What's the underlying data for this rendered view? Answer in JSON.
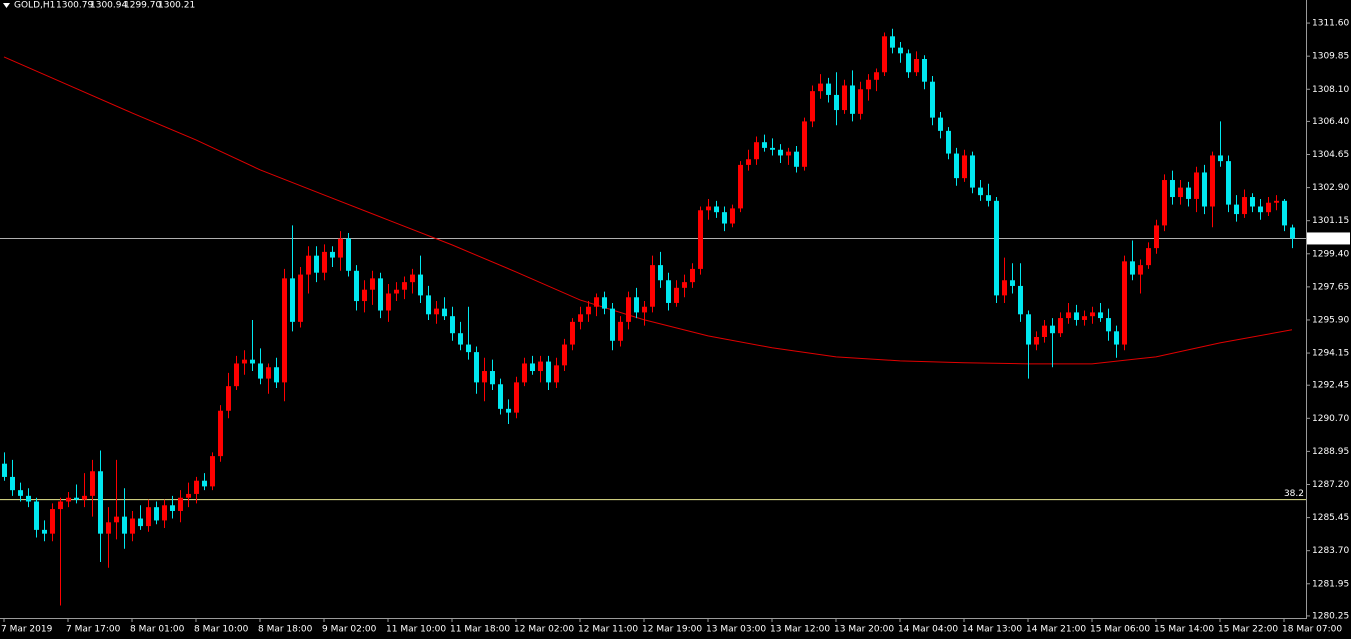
{
  "chart_data": {
    "type": "candlestick",
    "title": "GOLD,H1",
    "header_values": [
      "1300.79",
      "1300.94",
      "1299.70",
      "1300.21"
    ],
    "categories": [
      "7 Mar 2019",
      null,
      null,
      null,
      null,
      null,
      null,
      null,
      "7 Mar 17:00",
      null,
      null,
      null,
      null,
      null,
      null,
      null,
      "8 Mar 01:00",
      null,
      null,
      null,
      null,
      null,
      null,
      null,
      "8 Mar 10:00",
      null,
      null,
      null,
      null,
      null,
      null,
      null,
      "8 Mar 18:00",
      null,
      null,
      null,
      null,
      null,
      null,
      null,
      "9 Mar 02:00",
      null,
      null,
      null,
      null,
      null,
      null,
      null,
      "11 Mar 10:00",
      null,
      null,
      null,
      null,
      null,
      null,
      null,
      "11 Mar 18:00",
      null,
      null,
      null,
      null,
      null,
      null,
      null,
      "12 Mar 02:00",
      null,
      null,
      null,
      null,
      null,
      null,
      null,
      "12 Mar 11:00",
      null,
      null,
      null,
      null,
      null,
      null,
      null,
      "12 Mar 19:00",
      null,
      null,
      null,
      null,
      null,
      null,
      null,
      "13 Mar 03:00",
      null,
      null,
      null,
      null,
      null,
      null,
      null,
      "13 Mar 12:00",
      null,
      null,
      null,
      null,
      null,
      null,
      null,
      "13 Mar 20:00",
      null,
      null,
      null,
      null,
      null,
      null,
      null,
      "14 Mar 04:00",
      null,
      null,
      null,
      null,
      null,
      null,
      null,
      "14 Mar 13:00",
      null,
      null,
      null,
      null,
      null,
      null,
      null,
      "14 Mar 21:00",
      null,
      null,
      null,
      null,
      null,
      null,
      null,
      "15 Mar 06:00",
      null,
      null,
      null,
      null,
      null,
      null,
      null,
      "15 Mar 14:00",
      null,
      null,
      null,
      null,
      null,
      null,
      null,
      "15 Mar 22:00",
      null,
      null,
      null,
      null,
      null,
      null,
      null,
      "18 Mar 07:00",
      null
    ],
    "open": [
      1288.3,
      1287.6,
      1286.9,
      1286.6,
      1286.3,
      1284.8,
      1284.6,
      1285.9,
      1286.3,
      1286.5,
      1286.4,
      1286.6,
      1287.9,
      1284.6,
      1285.2,
      1285.5,
      1284.6,
      1285.4,
      1285.0,
      1286.0,
      1285.3,
      1286.1,
      1285.8,
      1286.5,
      1286.7,
      1287.4,
      1287.1,
      1288.7,
      1291.1,
      1292.4,
      1293.6,
      1293.8,
      1293.6,
      1292.8,
      1293.4,
      1292.6,
      1298.1,
      1295.8,
      1298.3,
      1299.3,
      1298.4,
      1299.5,
      1299.2,
      1300.2,
      1298.5,
      1296.9,
      1297.5,
      1298.1,
      1296.4,
      1297.3,
      1297.5,
      1297.9,
      1298.3,
      1297.2,
      1296.2,
      1296.5,
      1296.1,
      1295.2,
      1294.6,
      1294.2,
      1292.6,
      1293.2,
      1292.5,
      1291.2,
      1291.0,
      1292.6,
      1293.6,
      1293.2,
      1293.7,
      1292.6,
      1293.5,
      1294.6,
      1295.8,
      1296.2,
      1296.6,
      1297.1,
      1296.5,
      1294.8,
      1295.8,
      1297.1,
      1296.3,
      1296.6,
      1298.8,
      1298.0,
      1296.8,
      1297.6,
      1297.9,
      1298.6,
      1301.7,
      1301.9,
      1301.6,
      1301.0,
      1301.8,
      1304.1,
      1304.4,
      1305.3,
      1305.0,
      1304.9,
      1304.6,
      1304.8,
      1304.0,
      1306.4,
      1308.0,
      1308.4,
      1307.8,
      1307.0,
      1308.3,
      1306.8,
      1308.1,
      1308.6,
      1309.0,
      1310.9,
      1310.3,
      1310.0,
      1309.0,
      1309.7,
      1308.5,
      1306.6,
      1305.9,
      1304.7,
      1303.4,
      1304.6,
      1302.9,
      1302.5,
      1302.2,
      1297.2,
      1298.0,
      1297.7,
      1296.2,
      1294.6,
      1295.0,
      1295.6,
      1295.2,
      1296.0,
      1296.3,
      1295.9,
      1296.1,
      1296.3,
      1296.0,
      1295.3,
      1294.6,
      1299.0,
      1298.3,
      1298.8,
      1299.7,
      1300.9,
      1303.3,
      1302.4,
      1302.9,
      1302.3,
      1303.7,
      1301.9,
      1304.6,
      1304.3,
      1302.0,
      1301.5,
      1302.4,
      1301.9,
      1301.6,
      1302.1,
      1302.2,
      1300.79
    ],
    "high": [
      1288.9,
      1288.5,
      1287.3,
      1287.0,
      1286.5,
      1285.3,
      1286.2,
      1286.5,
      1286.8,
      1287.2,
      1287.8,
      1288.5,
      1289.0,
      1286.0,
      1288.5,
      1287.0,
      1285.8,
      1286.1,
      1286.4,
      1286.3,
      1286.4,
      1286.6,
      1286.9,
      1287.3,
      1287.6,
      1287.8,
      1288.9,
      1291.4,
      1293.1,
      1294.0,
      1294.3,
      1295.9,
      1294.4,
      1293.6,
      1293.9,
      1298.6,
      1300.9,
      1298.7,
      1299.8,
      1299.8,
      1299.9,
      1299.8,
      1300.6,
      1300.5,
      1298.8,
      1298.0,
      1298.5,
      1298.4,
      1297.8,
      1297.9,
      1298.2,
      1298.6,
      1299.3,
      1297.7,
      1296.9,
      1297.1,
      1296.6,
      1295.8,
      1296.6,
      1294.5,
      1293.9,
      1293.8,
      1292.8,
      1291.7,
      1292.9,
      1293.9,
      1294.0,
      1294.0,
      1294.0,
      1293.9,
      1294.9,
      1296.0,
      1296.6,
      1296.9,
      1297.3,
      1297.4,
      1296.8,
      1296.1,
      1297.4,
      1297.6,
      1296.9,
      1299.3,
      1299.5,
      1298.4,
      1298.0,
      1298.3,
      1298.9,
      1301.9,
      1302.3,
      1302.2,
      1301.9,
      1302.0,
      1304.3,
      1304.9,
      1305.6,
      1305.7,
      1305.5,
      1305.2,
      1305.0,
      1305.1,
      1306.6,
      1308.3,
      1308.9,
      1308.7,
      1309.0,
      1308.6,
      1309.1,
      1308.5,
      1308.9,
      1309.2,
      1311.1,
      1311.3,
      1310.6,
      1310.2,
      1310.1,
      1309.9,
      1308.8,
      1306.9,
      1306.1,
      1305.0,
      1304.9,
      1304.8,
      1303.3,
      1303.1,
      1302.4,
      1299.2,
      1298.9,
      1298.9,
      1296.4,
      1295.3,
      1295.9,
      1296.0,
      1296.3,
      1296.8,
      1296.7,
      1296.4,
      1296.6,
      1296.8,
      1296.5,
      1295.6,
      1299.3,
      1300.1,
      1299.1,
      1300.0,
      1301.2,
      1303.6,
      1303.8,
      1303.3,
      1303.2,
      1304.0,
      1304.1,
      1304.8,
      1306.4,
      1304.6,
      1302.5,
      1302.8,
      1302.6,
      1302.3,
      1302.4,
      1302.5,
      1302.3,
      1300.94
    ],
    "low": [
      1287.4,
      1286.6,
      1286.3,
      1286.0,
      1284.4,
      1284.2,
      1284.2,
      1280.8,
      1286.0,
      1286.2,
      1286.0,
      1285.5,
      1283.1,
      1282.8,
      1284.3,
      1283.8,
      1284.2,
      1284.8,
      1284.7,
      1285.1,
      1284.9,
      1285.4,
      1285.2,
      1286.0,
      1286.2,
      1286.9,
      1286.9,
      1288.4,
      1290.7,
      1292.2,
      1293.0,
      1293.2,
      1292.5,
      1292.0,
      1292.3,
      1291.6,
      1295.3,
      1295.5,
      1297.3,
      1297.9,
      1298.0,
      1298.7,
      1298.5,
      1298.2,
      1296.4,
      1296.3,
      1296.7,
      1296.0,
      1295.8,
      1296.9,
      1297.0,
      1297.3,
      1296.8,
      1295.9,
      1295.7,
      1295.9,
      1294.8,
      1294.3,
      1293.8,
      1292.0,
      1291.6,
      1292.2,
      1290.9,
      1290.4,
      1290.7,
      1292.4,
      1293.0,
      1292.6,
      1292.2,
      1292.3,
      1293.2,
      1294.3,
      1295.4,
      1295.8,
      1296.1,
      1296.2,
      1294.3,
      1294.5,
      1295.4,
      1296.0,
      1295.6,
      1296.3,
      1297.6,
      1296.4,
      1296.6,
      1297.1,
      1297.6,
      1298.3,
      1301.2,
      1301.3,
      1300.6,
      1300.8,
      1301.6,
      1303.8,
      1304.1,
      1304.8,
      1304.6,
      1304.2,
      1304.1,
      1303.7,
      1303.8,
      1306.1,
      1307.6,
      1307.4,
      1306.2,
      1306.8,
      1306.4,
      1306.5,
      1307.5,
      1308.0,
      1308.8,
      1310.0,
      1309.5,
      1308.7,
      1308.8,
      1308.1,
      1306.2,
      1305.5,
      1304.4,
      1303.0,
      1303.2,
      1302.6,
      1302.2,
      1301.9,
      1296.8,
      1296.8,
      1297.3,
      1295.8,
      1292.8,
      1294.3,
      1294.7,
      1293.4,
      1295.0,
      1295.7,
      1295.6,
      1295.6,
      1295.7,
      1295.8,
      1294.8,
      1293.9,
      1294.3,
      1298.0,
      1297.3,
      1298.6,
      1299.4,
      1300.6,
      1302.0,
      1302.0,
      1301.9,
      1301.6,
      1301.5,
      1300.8,
      1304.0,
      1301.6,
      1301.1,
      1301.3,
      1301.6,
      1301.2,
      1301.4,
      1301.7,
      1300.6,
      1299.7
    ],
    "close": [
      1287.6,
      1286.9,
      1286.6,
      1286.3,
      1284.8,
      1284.6,
      1285.9,
      1286.3,
      1286.5,
      1286.4,
      1286.6,
      1287.9,
      1284.6,
      1285.2,
      1285.5,
      1284.6,
      1285.4,
      1285.0,
      1286.0,
      1285.3,
      1286.1,
      1285.8,
      1286.5,
      1286.7,
      1287.4,
      1287.1,
      1288.7,
      1291.1,
      1292.4,
      1293.6,
      1293.8,
      1293.6,
      1292.8,
      1293.4,
      1292.6,
      1298.1,
      1295.8,
      1298.3,
      1299.3,
      1298.4,
      1299.5,
      1299.2,
      1300.2,
      1298.5,
      1296.9,
      1297.5,
      1298.1,
      1296.4,
      1297.3,
      1297.5,
      1297.9,
      1298.3,
      1297.2,
      1296.2,
      1296.5,
      1296.1,
      1295.2,
      1294.6,
      1294.2,
      1292.6,
      1293.2,
      1292.5,
      1291.2,
      1291.0,
      1292.6,
      1293.6,
      1293.2,
      1293.7,
      1292.6,
      1293.5,
      1294.6,
      1295.8,
      1296.2,
      1296.6,
      1297.1,
      1296.5,
      1294.8,
      1295.8,
      1297.1,
      1296.3,
      1296.6,
      1298.8,
      1298.0,
      1296.8,
      1297.6,
      1297.9,
      1298.6,
      1301.7,
      1301.9,
      1301.6,
      1301.0,
      1301.8,
      1304.1,
      1304.4,
      1305.3,
      1305.0,
      1304.9,
      1304.6,
      1304.8,
      1304.0,
      1306.4,
      1308.0,
      1308.4,
      1307.8,
      1307.0,
      1308.3,
      1306.8,
      1308.1,
      1308.6,
      1309.0,
      1310.9,
      1310.3,
      1310.0,
      1309.0,
      1309.7,
      1308.5,
      1306.6,
      1305.9,
      1304.7,
      1303.4,
      1304.6,
      1302.9,
      1302.5,
      1302.2,
      1297.2,
      1298.0,
      1297.7,
      1296.2,
      1294.6,
      1295.0,
      1295.6,
      1295.2,
      1296.0,
      1296.3,
      1295.9,
      1296.1,
      1296.3,
      1296.0,
      1295.3,
      1294.6,
      1299.0,
      1298.3,
      1298.8,
      1299.7,
      1300.9,
      1303.3,
      1302.4,
      1302.9,
      1302.3,
      1303.7,
      1301.9,
      1304.6,
      1304.3,
      1302.0,
      1301.5,
      1302.4,
      1301.9,
      1301.6,
      1302.1,
      1302.2,
      1300.9,
      1300.21
    ],
    "up_color": "#ff0000",
    "down_color": "#00e8f0",
    "ma": {
      "color": "#e00000",
      "x": [
        0,
        8,
        16,
        24,
        32,
        40,
        48,
        56,
        64,
        72,
        80,
        88,
        96,
        104,
        112,
        120,
        128,
        136,
        144,
        152,
        161
      ],
      "values": [
        1309.81,
        1308.33,
        1306.85,
        1305.42,
        1303.84,
        1302.51,
        1301.19,
        1299.87,
        1298.44,
        1296.96,
        1295.91,
        1295.06,
        1294.43,
        1293.95,
        1293.74,
        1293.64,
        1293.58,
        1293.58,
        1293.95,
        1294.69,
        1295.38
      ]
    },
    "bid": 1300.21,
    "bid_color": "#b0b0b0",
    "fib": {
      "value": 1286.4,
      "label": "38.2"
    },
    "fib_color": "#e8e890",
    "ylim": [
      1280.14,
      1312.82
    ],
    "yticks": [
      {
        "value": 1311.6,
        "label": "1311.60"
      },
      1309.85,
      {
        "value": 1308.1,
        "label": "1308.10"
      },
      {
        "value": 1306.4,
        "label": "1306.40"
      },
      1304.65,
      {
        "value": 1302.9,
        "label": "1302.90"
      },
      1301.15,
      {
        "value": 1299.4,
        "label": "1299.40"
      },
      1297.65,
      {
        "value": 1295.9,
        "label": "1295.90"
      },
      1294.15,
      1292.45,
      {
        "value": 1290.7,
        "label": "1290.70"
      },
      1288.95,
      {
        "value": 1287.2,
        "label": "1287.20"
      },
      1285.45,
      {
        "value": 1283.7,
        "label": "1283.70"
      },
      1281.95,
      1280.25
    ]
  }
}
